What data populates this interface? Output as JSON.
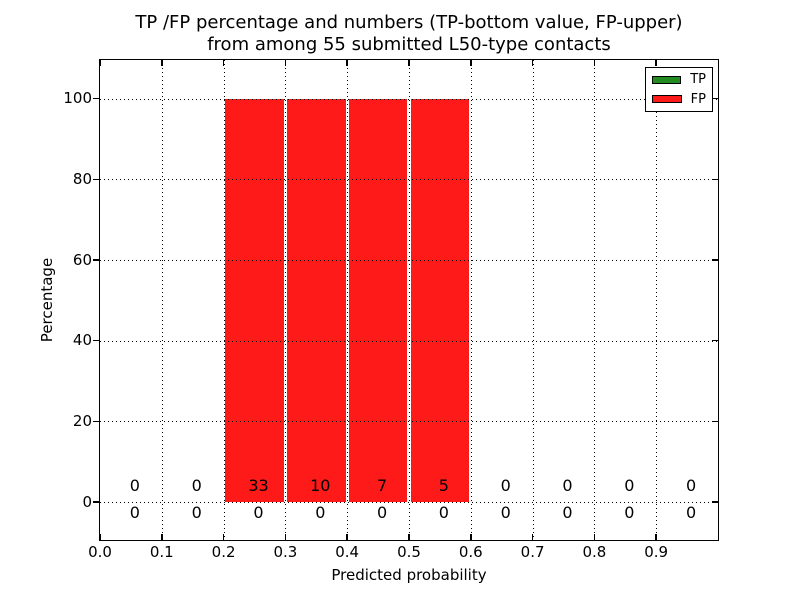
{
  "chart_data": {
    "type": "bar",
    "stacked": true,
    "title_lines": [
      "TP /FP percentage and numbers (TP-bottom value, FP-upper)",
      "from among 55 submitted L50-type contacts"
    ],
    "xlabel": "Predicted probability",
    "ylabel": "Percentage",
    "xlim": [
      0.0,
      1.0
    ],
    "ylim": [
      -9.4,
      109.6
    ],
    "x_ticks": [
      "0.0",
      "0.1",
      "0.2",
      "0.3",
      "0.4",
      "0.5",
      "0.6",
      "0.7",
      "0.8",
      "0.9"
    ],
    "y_ticks": [
      0,
      20,
      40,
      60,
      80,
      100
    ],
    "grid": "dotted-black-over-bars",
    "legend_position": "upper-right",
    "bin_width": 0.1,
    "bin_starts": [
      0.0,
      0.1,
      0.2,
      0.3,
      0.4,
      0.5,
      0.6,
      0.7,
      0.8,
      0.9
    ],
    "series": [
      {
        "name": "TP",
        "color": "#228b22",
        "percent": [
          0,
          0,
          0,
          0,
          0,
          0,
          0,
          0,
          0,
          0
        ],
        "counts": [
          0,
          0,
          0,
          0,
          0,
          0,
          0,
          0,
          0,
          0
        ]
      },
      {
        "name": "FP",
        "color": "#ff1a1a",
        "percent": [
          0,
          0,
          100,
          100,
          100,
          100,
          0,
          0,
          0,
          0
        ],
        "counts": [
          0,
          0,
          33,
          10,
          7,
          5,
          0,
          0,
          0,
          0
        ]
      }
    ]
  }
}
